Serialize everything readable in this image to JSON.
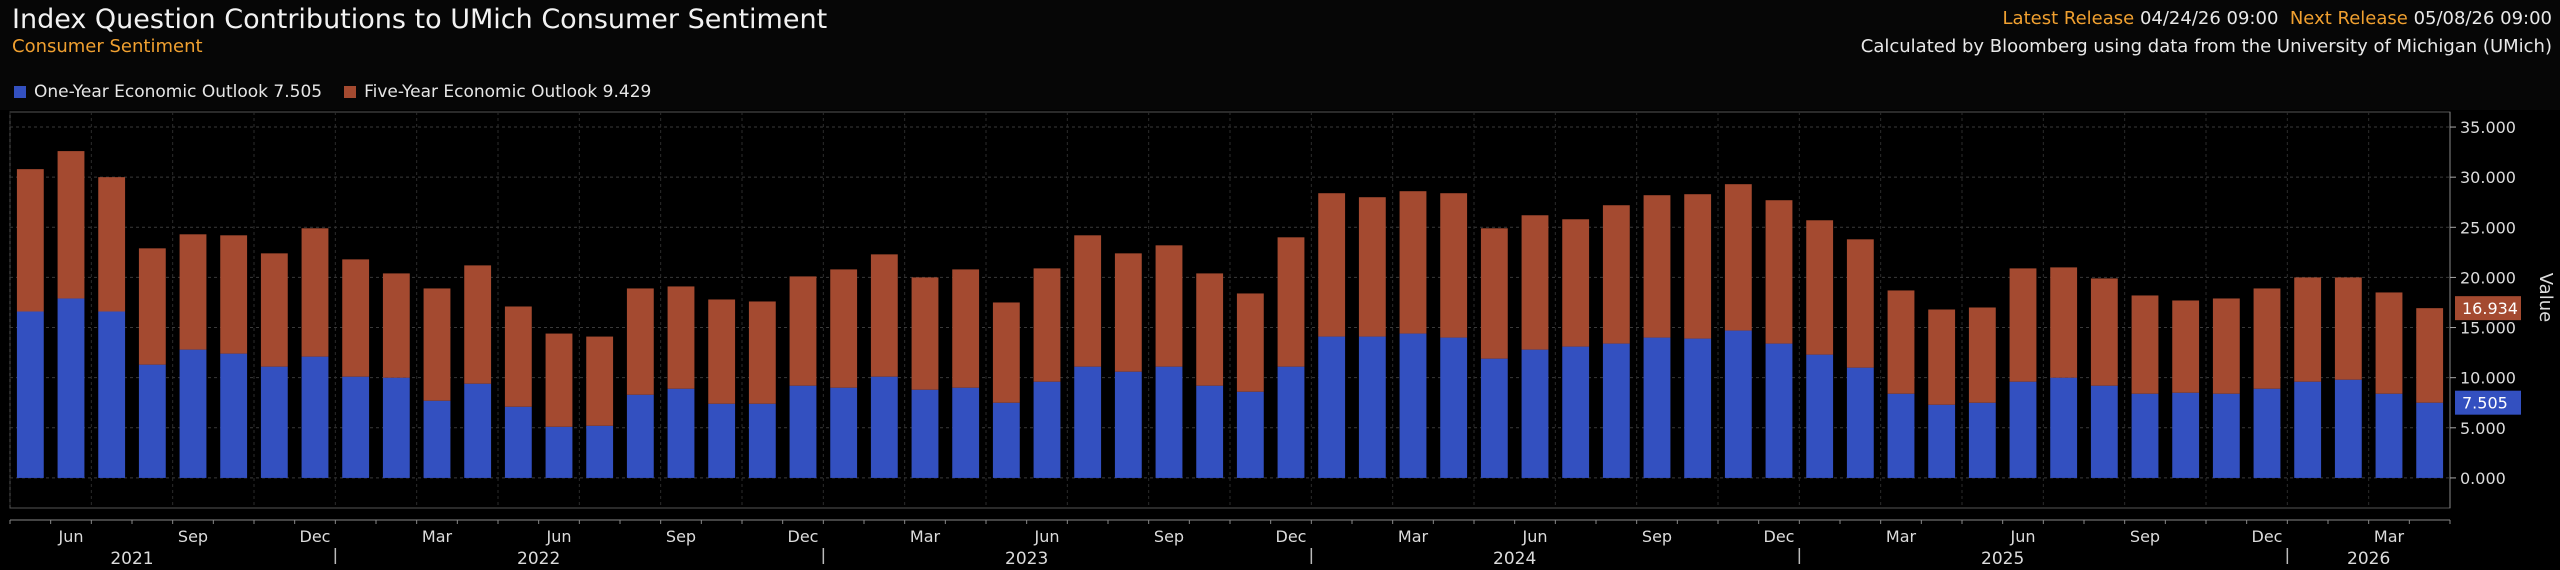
{
  "header": {
    "title": "Index Question Contributions to UMich Consumer Sentiment",
    "subtitle": "Consumer Sentiment",
    "latest_label": "Latest Release",
    "latest_value": "04/24/26 09:00",
    "next_label": "Next Release",
    "next_value": "05/08/26 09:00",
    "source": "Calculated by Bloomberg using data from the University of Michigan (UMich)"
  },
  "legend": [
    {
      "label": "One-Year Economic Outlook 7.505",
      "color": "#3350c0"
    },
    {
      "label": "Five-Year Economic Outlook 9.429",
      "color": "#a44a30"
    }
  ],
  "chart_data": {
    "type": "bar",
    "stacked": true,
    "y_axis_label": "Value",
    "ylim": [
      -3,
      36.5
    ],
    "y_ticks": [
      "35.000",
      "30.000",
      "25.000",
      "20.000",
      "15.000",
      "10.000",
      "5.000",
      "0.000"
    ],
    "y_tick_values": [
      35,
      30,
      25,
      20,
      15,
      10,
      5,
      0
    ],
    "month_ticks": [
      "Jun",
      "Sep",
      "Dec",
      "Mar",
      "Jun",
      "Sep",
      "Dec",
      "Mar",
      "Jun",
      "Sep",
      "Dec",
      "Mar",
      "Jun",
      "Sep",
      "Dec",
      "Mar",
      "Jun",
      "Sep",
      "Dec",
      "Mar"
    ],
    "month_tick_indices": [
      1,
      4,
      7,
      10,
      13,
      16,
      19,
      22,
      25,
      28,
      31,
      34,
      37,
      40,
      43,
      46,
      49,
      52,
      55,
      58
    ],
    "year_labels": [
      "2021",
      "2022",
      "2023",
      "2024",
      "2025",
      "2026"
    ],
    "year_label_indices": [
      3,
      13,
      25,
      37,
      49,
      58
    ],
    "year_separator_indices": [
      8,
      20,
      32,
      44,
      56
    ],
    "categories": [
      "May21",
      "Jun21",
      "Jul21",
      "Aug21",
      "Sep21",
      "Oct21",
      "Nov21",
      "Dec21",
      "Jan22",
      "Feb22",
      "Mar22",
      "Apr22",
      "May22",
      "Jun22",
      "Jul22",
      "Aug22",
      "Sep22",
      "Oct22",
      "Nov22",
      "Dec22",
      "Jan23",
      "Feb23",
      "Mar23",
      "Apr23",
      "May23",
      "Jun23",
      "Jul23",
      "Aug23",
      "Sep23",
      "Oct23",
      "Nov23",
      "Dec23",
      "Jan24",
      "Feb24",
      "Mar24",
      "Apr24",
      "May24",
      "Jun24",
      "Jul24",
      "Aug24",
      "Sep24",
      "Oct24",
      "Nov24",
      "Dec24",
      "Jan25",
      "Feb25",
      "Mar25",
      "Apr25",
      "May25",
      "Jun25",
      "Jul25",
      "Aug25",
      "Sep25",
      "Oct25",
      "Nov25",
      "Dec25",
      "Jan26",
      "Feb26",
      "Mar26",
      "Apr26"
    ],
    "series": [
      {
        "name": "One-Year Economic Outlook",
        "color": "#3350c0",
        "values": [
          16.6,
          17.9,
          16.6,
          11.3,
          12.8,
          12.4,
          11.1,
          12.1,
          10.1,
          10.0,
          7.7,
          9.4,
          7.1,
          5.1,
          5.2,
          8.3,
          8.9,
          7.4,
          7.4,
          9.2,
          9.0,
          10.1,
          8.8,
          9.0,
          7.5,
          9.6,
          11.1,
          10.6,
          11.1,
          9.2,
          8.6,
          11.1,
          14.1,
          14.1,
          14.4,
          14.0,
          11.9,
          12.8,
          13.1,
          13.4,
          14.0,
          13.9,
          14.7,
          13.4,
          12.3,
          11.0,
          8.4,
          7.3,
          7.5,
          9.6,
          10.0,
          9.2,
          8.4,
          8.5,
          8.4,
          8.9,
          9.6,
          9.8,
          8.4,
          7.505
        ]
      },
      {
        "name": "Five-Year Economic Outlook",
        "color": "#a44a30",
        "values": [
          14.2,
          14.7,
          13.4,
          11.6,
          11.5,
          11.8,
          11.3,
          12.8,
          11.7,
          10.4,
          11.2,
          11.8,
          10.0,
          9.3,
          8.9,
          10.6,
          10.2,
          10.4,
          10.2,
          10.9,
          11.8,
          12.2,
          11.2,
          11.8,
          10.0,
          11.3,
          13.1,
          11.8,
          12.1,
          11.2,
          9.8,
          12.9,
          14.3,
          13.9,
          14.2,
          14.4,
          13.0,
          13.4,
          12.7,
          13.8,
          14.2,
          14.4,
          14.6,
          14.3,
          13.4,
          12.8,
          10.3,
          9.5,
          9.5,
          11.3,
          11.0,
          10.7,
          9.8,
          9.2,
          9.5,
          10.0,
          10.4,
          10.2,
          10.1,
          9.429
        ]
      }
    ],
    "last_total_label": "16.934",
    "last_value_label": "7.505"
  }
}
